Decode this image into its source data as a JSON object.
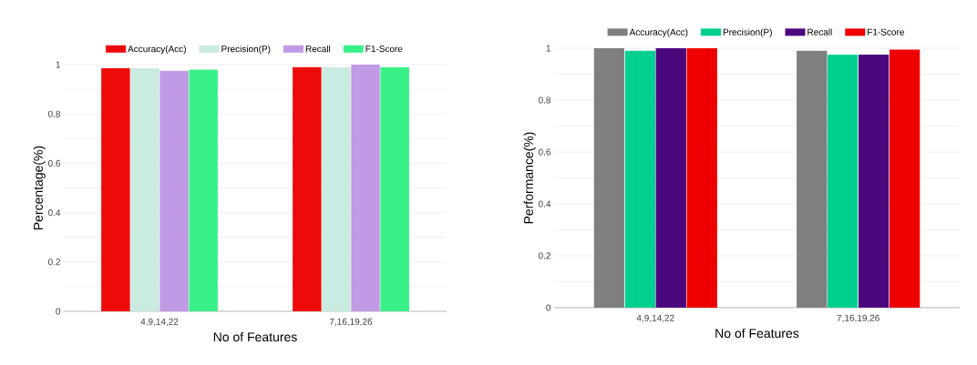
{
  "chart_data": [
    {
      "type": "bar",
      "categories": [
        "4,9,14,22",
        "7,16,19,26"
      ],
      "xlabel": "No of Features",
      "ylabel": "Percentage(%)",
      "series": [
        {
          "name": "Accuracy(Acc)",
          "color": "#ee0a0a",
          "values": [
            0.985,
            0.99
          ]
        },
        {
          "name": "Precision(P)",
          "color": "#c9ebe0",
          "values": [
            0.985,
            0.99
          ]
        },
        {
          "name": "Recall",
          "color": "#c09ae4",
          "values": [
            0.975,
            1.0
          ]
        },
        {
          "name": "F1-Score",
          "color": "#38f088",
          "values": [
            0.98,
            0.99
          ]
        }
      ],
      "ylim": [
        0,
        1
      ],
      "yticks": [
        0,
        {
          "value": 0.1,
          "label": null
        },
        0.2,
        {
          "value": 0.3,
          "label": null
        },
        0.4,
        {
          "value": 0.5,
          "label": null
        },
        0.6,
        {
          "value": 0.7,
          "label": null
        },
        0.8,
        {
          "value": 0.9,
          "label": null
        },
        1
      ],
      "grid": "y",
      "legend": "top"
    },
    {
      "type": "bar",
      "categories": [
        "4,9,14,22",
        "7,16,19,26"
      ],
      "xlabel": "No of Features",
      "ylabel": "Performance(%)",
      "series": [
        {
          "name": "Accuracy(Acc)",
          "color": "#7f7f7f",
          "values": [
            1.0,
            0.99
          ]
        },
        {
          "name": "Precision(P)",
          "color": "#00d08f",
          "values": [
            0.99,
            0.975
          ]
        },
        {
          "name": "Recall",
          "color": "#4b077d",
          "values": [
            1.0,
            0.975
          ]
        },
        {
          "name": "F1-Score",
          "color": "#ee0000",
          "values": [
            1.0,
            0.995
          ]
        }
      ],
      "ylim": [
        0,
        1
      ],
      "yticks": [
        0,
        {
          "value": 0.1,
          "label": null
        },
        0.2,
        {
          "value": 0.3,
          "label": null
        },
        0.4,
        {
          "value": 0.5,
          "label": null
        },
        0.6,
        {
          "value": 0.7,
          "label": null
        },
        0.8,
        {
          "value": 0.9,
          "label": null
        },
        1
      ],
      "grid": "y",
      "legend": "top"
    }
  ]
}
